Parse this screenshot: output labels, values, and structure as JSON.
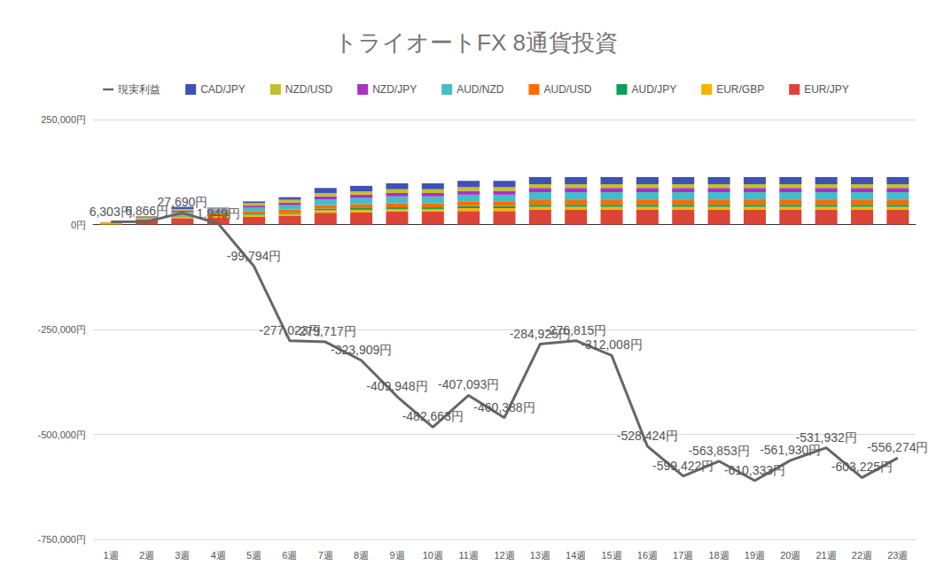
{
  "chart_data": {
    "type": "bar",
    "title": "トライオートFX 8通貨投資",
    "categories": [
      "1週",
      "2週",
      "3週",
      "4週",
      "5週",
      "6週",
      "7週",
      "8週",
      "9週",
      "10週",
      "11週",
      "12週",
      "13週",
      "14週",
      "15週",
      "16週",
      "17週",
      "18週",
      "19週",
      "20週",
      "21週",
      "22週",
      "23週"
    ],
    "stacked": true,
    "grid": true,
    "legend": "top",
    "ylim": [
      -750000,
      250000
    ],
    "yticks": [
      {
        "value": -750000,
        "label": "-750,000円"
      },
      {
        "value": -500000,
        "label": "-500,000円"
      },
      {
        "value": -250000,
        "label": "-250,000円"
      },
      {
        "value": 0,
        "label": "0円"
      },
      {
        "value": 250000,
        "label": "250,000円"
      }
    ],
    "series": [
      {
        "name": "現実利益",
        "type": "line",
        "color": "#666666",
        "data_labels": true,
        "values": [
          6303,
          6866,
          27690,
          1949,
          -99794,
          -277023,
          -279717,
          -323909,
          -409948,
          -482663,
          -407093,
          -460388,
          -284925,
          -276815,
          -312008,
          -528424,
          -599422,
          -563853,
          -610333,
          -561930,
          -531932,
          -603225,
          -556274
        ],
        "value_labels": [
          "6,303円",
          "6,866円",
          "27,690円",
          "1,949円",
          "-99,794円",
          "-277,023円",
          "-279,717円",
          "-323,909円",
          "-409,948円",
          "-482,663円",
          "-407,093円",
          "-460,388円",
          "-284,925円",
          "-276,815円",
          "-312,008円",
          "-528,424円",
          "-599,422円",
          "-563,853円",
          "-610,333円",
          "-561,930円",
          "-531,932円",
          "-603,225円",
          "-556,274円"
        ]
      },
      {
        "name": "CAD/JPY",
        "type": "bar",
        "color": "#3f51b5",
        "values": [
          0,
          1000,
          5000,
          2000,
          4000,
          6000,
          12000,
          13000,
          14000,
          14000,
          15000,
          15000,
          17000,
          17000,
          17000,
          17000,
          17000,
          17000,
          17000,
          17000,
          17000,
          17000,
          17000
        ]
      },
      {
        "name": "NZD/USD",
        "type": "bar",
        "color": "#c0c02b",
        "values": [
          0,
          1000,
          4000,
          4000,
          6000,
          7000,
          8000,
          8000,
          9000,
          9000,
          9000,
          9000,
          9000,
          9000,
          9000,
          9000,
          9000,
          9000,
          9000,
          9000,
          9000,
          9000,
          9000
        ]
      },
      {
        "name": "NZD/JPY",
        "type": "bar",
        "color": "#ab30c4",
        "values": [
          0,
          0,
          3000,
          3000,
          5000,
          6000,
          7000,
          8000,
          8000,
          8000,
          9000,
          9000,
          10000,
          10000,
          10000,
          10000,
          10000,
          10000,
          10000,
          10000,
          10000,
          10000,
          10000
        ]
      },
      {
        "name": "AUD/NZD",
        "type": "bar",
        "color": "#46bdc6",
        "values": [
          0,
          0,
          5000,
          4000,
          8000,
          10000,
          14000,
          15000,
          16000,
          16000,
          17000,
          17000,
          19000,
          19000,
          19000,
          19000,
          19000,
          19000,
          19000,
          19000,
          19000,
          19000,
          19000
        ]
      },
      {
        "name": "AUD/USD",
        "type": "bar",
        "color": "#ff6d01",
        "values": [
          2000,
          2000,
          4000,
          5000,
          6000,
          8000,
          8000,
          9000,
          10000,
          10000,
          10000,
          10000,
          11000,
          11000,
          11000,
          11000,
          11000,
          11000,
          11000,
          11000,
          11000,
          11000,
          11000
        ]
      },
      {
        "name": "AUD/JPY",
        "type": "bar",
        "color": "#0f9d58",
        "values": [
          0,
          1000,
          2000,
          2000,
          3000,
          3000,
          4000,
          4000,
          4000,
          4000,
          5000,
          5000,
          5000,
          5000,
          5000,
          5000,
          5000,
          5000,
          5000,
          5000,
          5000,
          5000,
          5000
        ]
      },
      {
        "name": "EUR/GBP",
        "type": "bar",
        "color": "#f4b400",
        "values": [
          3000,
          3000,
          4000,
          4000,
          5000,
          5000,
          6000,
          6000,
          6000,
          6000,
          7000,
          7000,
          7000,
          7000,
          7000,
          7000,
          7000,
          7000,
          7000,
          7000,
          7000,
          7000,
          7000
        ]
      },
      {
        "name": "EUR/JPY",
        "type": "bar",
        "color": "#db4437",
        "values": [
          0,
          12000,
          15000,
          16000,
          18000,
          20000,
          28000,
          29000,
          31000,
          31000,
          32000,
          32000,
          35000,
          35000,
          35000,
          35000,
          35000,
          35000,
          35000,
          35000,
          35000,
          35000,
          35000
        ]
      }
    ]
  }
}
